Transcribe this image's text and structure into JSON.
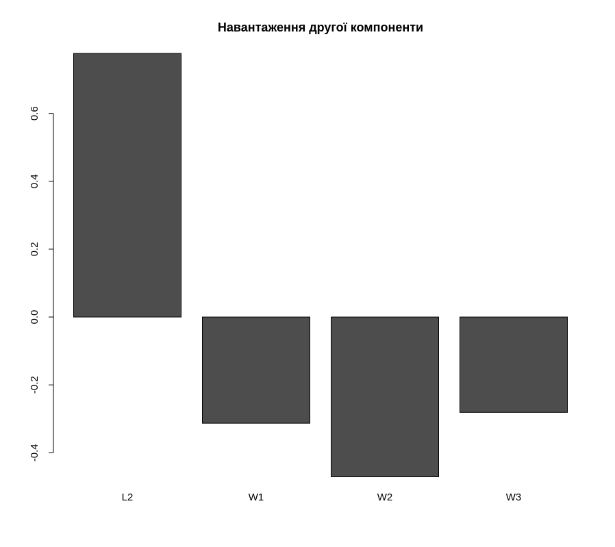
{
  "chart_data": {
    "type": "bar",
    "title": "Навантаження другої компоненти",
    "xlabel": "",
    "ylabel": "",
    "categories": [
      "L2",
      "W1",
      "W2",
      "W3"
    ],
    "values": [
      0.777,
      -0.313,
      -0.471,
      -0.281
    ],
    "ylim": [
      -0.47,
      0.777
    ],
    "yticks": [
      -0.4,
      -0.2,
      0.0,
      0.2,
      0.4,
      0.6
    ],
    "ytick_labels": [
      "-0.4",
      "-0.2",
      "0.0",
      "0.2",
      "0.4",
      "0.6"
    ],
    "grid": false,
    "legend": "none",
    "bar_color": "#4d4d4d",
    "bar_edge_color": "#000000"
  }
}
